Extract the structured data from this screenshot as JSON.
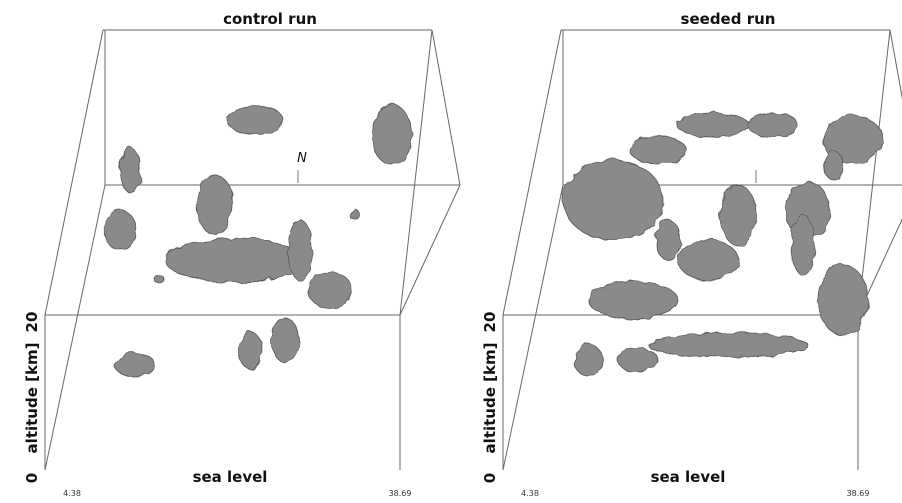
{
  "panels": [
    {
      "title": "control run",
      "north_label": "N",
      "altitude_top": "20",
      "altitude_label": "altitude [km]",
      "altitude_bottom": "0",
      "sea_level_label": "sea level",
      "x_min_label": "4.38",
      "x_max_label": "38.69"
    },
    {
      "title": "seeded run",
      "altitude_top": "20",
      "altitude_label": "altitude [km]",
      "altitude_bottom": "0",
      "sea_level_label": "sea level",
      "x_min_label": "4.38",
      "x_max_label": "38.69"
    }
  ]
}
